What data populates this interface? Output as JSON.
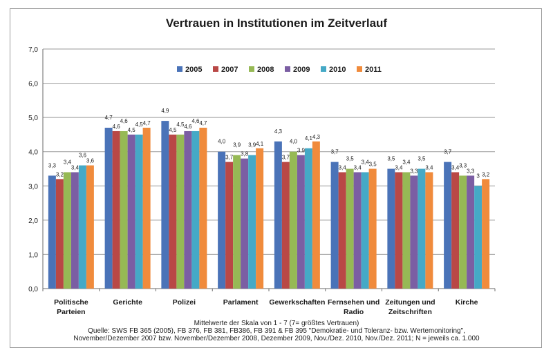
{
  "chart_data": {
    "type": "bar",
    "title": "Vertrauen in Institutionen im Zeitverlauf",
    "categories": [
      "Politische Parteien",
      "Gerichte",
      "Polizei",
      "Parlament",
      "Gewerkschaften",
      "Fernsehen und Radio",
      "Zeitungen und Zeitschriften",
      "Kirche"
    ],
    "series": [
      {
        "name": "2005",
        "color": "#4a73b8",
        "values": [
          3.3,
          4.7,
          4.9,
          4.0,
          4.3,
          3.7,
          3.5,
          3.7
        ],
        "labels": [
          "3,3",
          "4,7",
          "4,9",
          "4,0",
          "4,3",
          "3,7",
          "3,5",
          "3,7"
        ]
      },
      {
        "name": "2007",
        "color": "#b94846",
        "values": [
          3.2,
          4.6,
          4.5,
          3.7,
          3.7,
          3.4,
          3.4,
          3.4
        ],
        "labels": [
          "3,2",
          "4,6",
          "4,5",
          "3,7",
          "3,7",
          "3,4",
          "3,4",
          "3,4"
        ]
      },
      {
        "name": "2008",
        "color": "#96b955",
        "values": [
          3.4,
          4.6,
          4.5,
          3.9,
          4.0,
          3.5,
          3.4,
          3.3
        ],
        "labels": [
          "3,4",
          "4,6",
          "4,5",
          "3,9",
          "4,0",
          "3,5",
          "3,4",
          "3,3"
        ]
      },
      {
        "name": "2009",
        "color": "#7b5ea3",
        "values": [
          3.4,
          4.5,
          4.6,
          3.8,
          3.9,
          3.4,
          3.3,
          3.3
        ],
        "labels": [
          "3,4",
          "4,5",
          "4,6",
          "3,8",
          "3,9",
          "3,4",
          "3,3",
          "3,3"
        ]
      },
      {
        "name": "2010",
        "color": "#45a9c6",
        "values": [
          3.6,
          4.5,
          4.6,
          3.9,
          4.1,
          3.4,
          3.5,
          3.0
        ],
        "labels": [
          "3,6",
          "4,5",
          "4,6",
          "3,9",
          "4,1",
          "3,4",
          "3,5",
          "3"
        ]
      },
      {
        "name": "2011",
        "color": "#f08b3c",
        "values": [
          3.6,
          4.7,
          4.7,
          4.1,
          4.3,
          3.5,
          3.4,
          3.2
        ],
        "labels": [
          "3,6",
          "4,7",
          "4,7",
          "4,1",
          "4,3",
          "3,5",
          "3,4",
          "3,2"
        ]
      }
    ],
    "ylim": [
      0,
      7
    ],
    "yticks": [
      "0,0",
      "1,0",
      "2,0",
      "3,0",
      "4,0",
      "5,0",
      "6,0",
      "7,0"
    ],
    "grid": true,
    "legend": "top-center",
    "xlabel": "",
    "ylabel": "",
    "footnote": [
      "Mittelwerte der Skala von 1 - 7 (7= größtes Vertrauen)",
      "Quelle: SWS FB 365 (2005), FB 376, FB 381, FB386, FB 391 & FB 395 \"Demokratie- und Toleranz- bzw. Wertemonitoring\",",
      "November/Dezember 2007 bzw. November/Dezember 2008, Dezember 2009, Nov./Dez. 2010, Nov./Dez. 2011; N = jeweils ca. 1.000"
    ]
  }
}
